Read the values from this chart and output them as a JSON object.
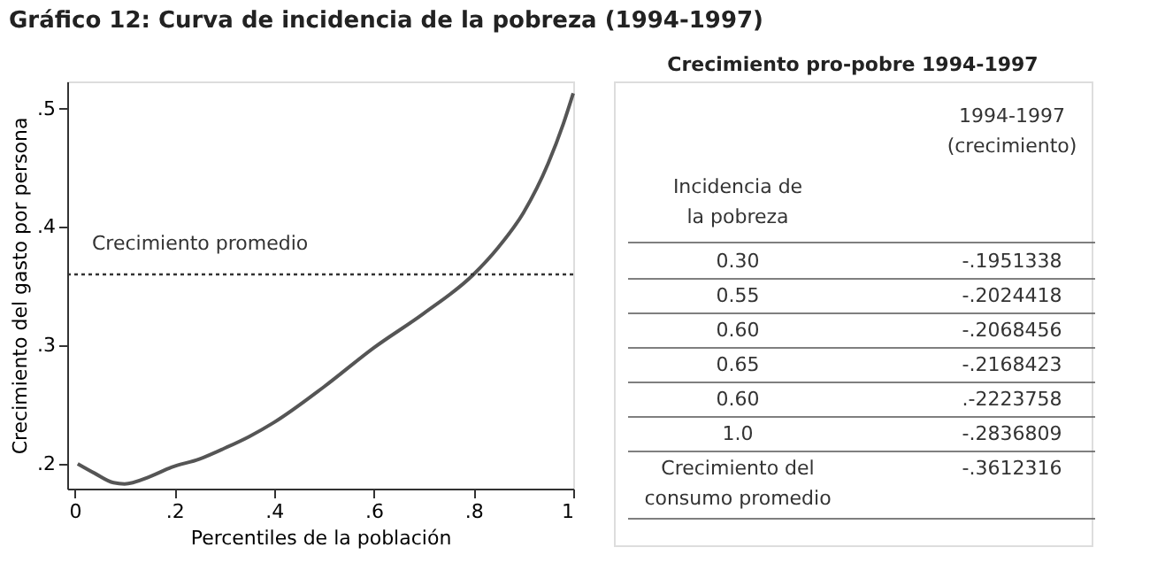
{
  "chart_data": [
    {
      "type": "line",
      "title": "Gráfico 12: Curva de incidencia de la pobreza (1994-1997)",
      "xlabel": "Percentiles de la población",
      "ylabel": "Crecimiento del gasto por persona",
      "series": [
        {
          "color": "#555555",
          "x": [
            0.006,
            0.04,
            0.078,
            0.1,
            0.15,
            0.194,
            0.25,
            0.3,
            0.35,
            0.4,
            0.5,
            0.6,
            0.7,
            0.8,
            0.85,
            0.9,
            0.95,
            0.98,
            1.0
          ],
          "values": [
            0.2,
            0.192,
            0.184,
            0.183,
            0.189,
            0.197,
            0.204,
            0.213,
            0.223,
            0.235,
            0.265,
            0.298,
            0.327,
            0.36,
            0.383,
            0.412,
            0.454,
            0.487,
            0.513
          ]
        }
      ],
      "xlim": [
        -0.015,
        1.0
      ],
      "xticks": [
        {
          "value": 0,
          "label": "0"
        },
        {
          "value": 0.2,
          "label": ".2"
        },
        {
          "value": 0.4,
          "label": ".4"
        },
        {
          "value": 0.6,
          "label": ".6"
        },
        {
          "value": 0.8,
          "label": ".8"
        },
        {
          "value": 1,
          "label": "1"
        }
      ],
      "ylim": [
        0.179,
        0.523
      ],
      "yticks": [
        {
          "value": 0.2,
          "label": ".2"
        },
        {
          "value": 0.3,
          "label": ".3"
        },
        {
          "value": 0.4,
          "label": ".4"
        },
        {
          "value": 0.5,
          "label": ".5"
        }
      ],
      "ref_lines": [
        {
          "axis": "y",
          "value": 0.36,
          "label": "Crecimiento promedio",
          "line_style": "dotted",
          "color": "#333333"
        }
      ],
      "grid": false,
      "line_style": "solid",
      "marker": "none"
    },
    {
      "type": "other",
      "title": "Crecimiento pro-pobre 1994-1997",
      "annotations": [
        "1994-1997\n(crecimiento)",
        "Incidencia de\nla pobreza",
        "0.30",
        "-.1951338",
        "0.55",
        "-.2024418",
        "0.60",
        "-.2068456",
        "0.65",
        "-.2168423",
        "0.60",
        ".-2223758",
        "1.0",
        "-.2836809",
        "Crecimiento del\nconsumo promedio",
        "-.3612316"
      ]
    }
  ]
}
